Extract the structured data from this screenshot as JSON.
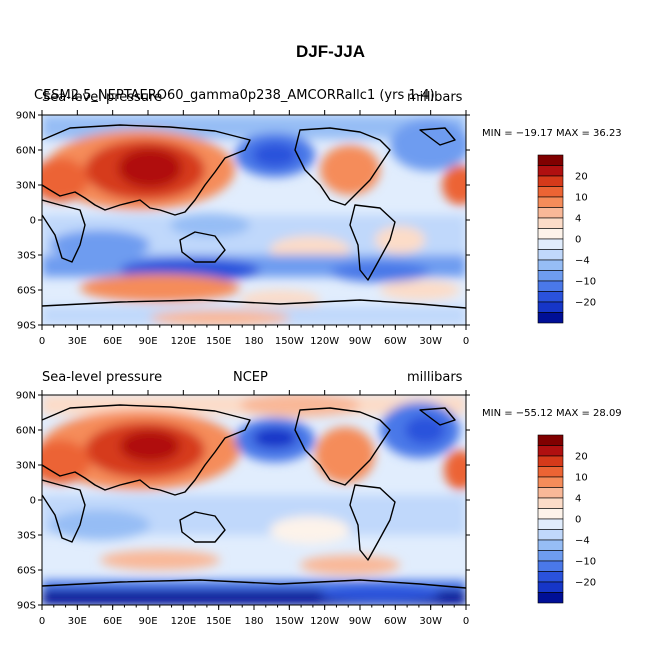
{
  "title": "DJF-JJA",
  "panels": [
    {
      "left_label": "Sea-level pressure",
      "center_label": "CESM2.5_NEPTAERO60_gamma0p238_AMCORRallc1 (yrs 1-4)",
      "right_label": "millibars",
      "minmax": "MIN = −19.17 MAX =  36.23"
    },
    {
      "left_label": "Sea-level pressure",
      "center_label": "NCEP",
      "right_label": "millibars",
      "minmax": "MIN = −55.12 MAX =  28.09"
    }
  ],
  "lat_ticks": [
    "90N",
    "60N",
    "30N",
    "0",
    "30S",
    "60S",
    "90S"
  ],
  "lon_ticks": [
    "0",
    "30E",
    "60E",
    "90E",
    "120E",
    "150E",
    "180",
    "150W",
    "120W",
    "90W",
    "60W",
    "30W",
    "0"
  ],
  "colorbar": {
    "labels": [
      "20",
      "10",
      "4",
      "0",
      "−4",
      "−10",
      "−20"
    ],
    "colors": [
      "#800000",
      "#b01010",
      "#d63a1a",
      "#ec6434",
      "#f58c5a",
      "#f9b898",
      "#fcdcc8",
      "#fdf3ea",
      "#e1edfd",
      "#c0d8fb",
      "#96bdf5",
      "#6e9cf0",
      "#4a78e8",
      "#2a52dc",
      "#1636c8",
      "#000f96"
    ]
  }
}
